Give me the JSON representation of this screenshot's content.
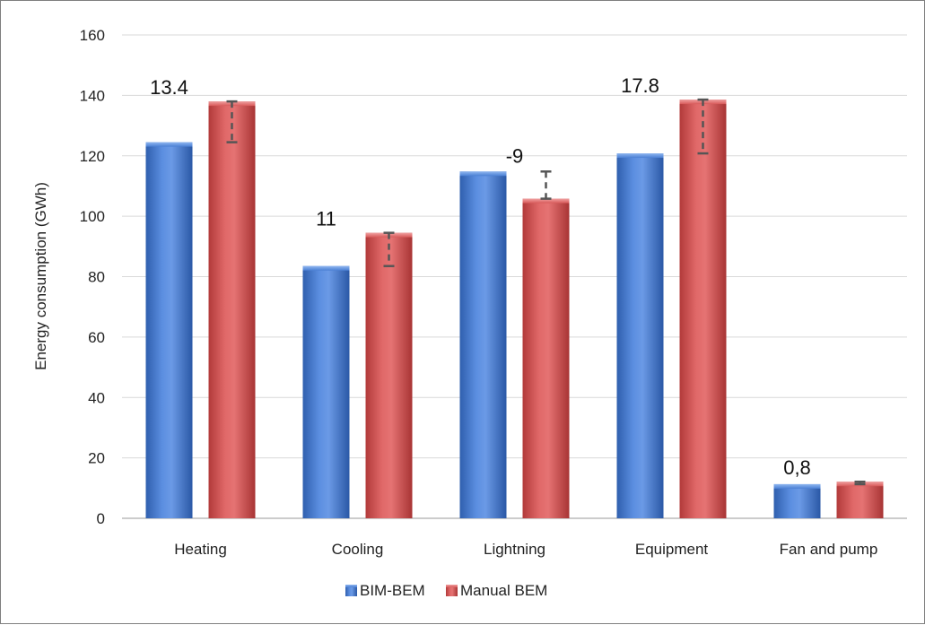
{
  "chart_data": {
    "type": "bar",
    "title": "",
    "xlabel": "",
    "ylabel": "Energy consumption (GWh)",
    "ylim": [
      0,
      160
    ],
    "yticks": [
      0,
      20,
      40,
      60,
      80,
      100,
      120,
      140,
      160
    ],
    "grid": true,
    "legend_position": "bottom",
    "categories": [
      "Heating",
      "Cooling",
      "Lightning",
      "Equipment",
      "Fan and pump"
    ],
    "series": [
      {
        "name": "BIM-BEM",
        "color": "#4a7fd4",
        "values": [
          124.5,
          83.5,
          114.8,
          120.8,
          11.3
        ]
      },
      {
        "name": "Manual BEM",
        "color": "#d85a5a",
        "values": [
          138.0,
          94.5,
          105.8,
          138.6,
          12.1
        ]
      }
    ],
    "difference_labels": [
      "13.4",
      "11",
      "-9",
      "17.8",
      "0,8"
    ]
  }
}
